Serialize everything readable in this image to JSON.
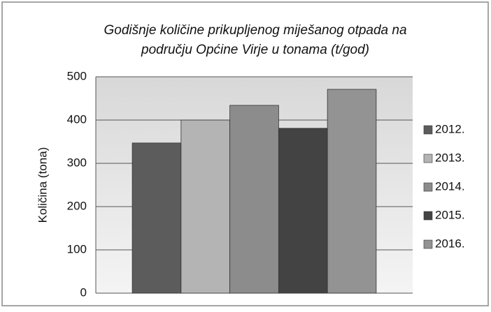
{
  "chart_data": {
    "type": "bar",
    "title": [
      "Godišnje količine prikupljenog miješanog otpada na",
      "području Općine Virje u tonama (t/god)"
    ],
    "y_label": "Količina (tona)",
    "categories": [
      null
    ],
    "series": [
      {
        "name": "2012.",
        "color": "#5c5c5c",
        "values": [
          347
        ]
      },
      {
        "name": "2013.",
        "color": "#b4b4b4",
        "values": [
          400
        ]
      },
      {
        "name": "2014.",
        "color": "#8c8c8c",
        "values": [
          434
        ]
      },
      {
        "name": "2015.",
        "color": "#434343",
        "values": [
          381
        ]
      },
      {
        "name": "2016.",
        "color": "#939393",
        "values": [
          471
        ]
      }
    ],
    "ylim": [
      0,
      500
    ],
    "yticks": [
      0,
      100,
      200,
      300,
      400,
      500
    ],
    "grid": true,
    "legend": "right"
  }
}
